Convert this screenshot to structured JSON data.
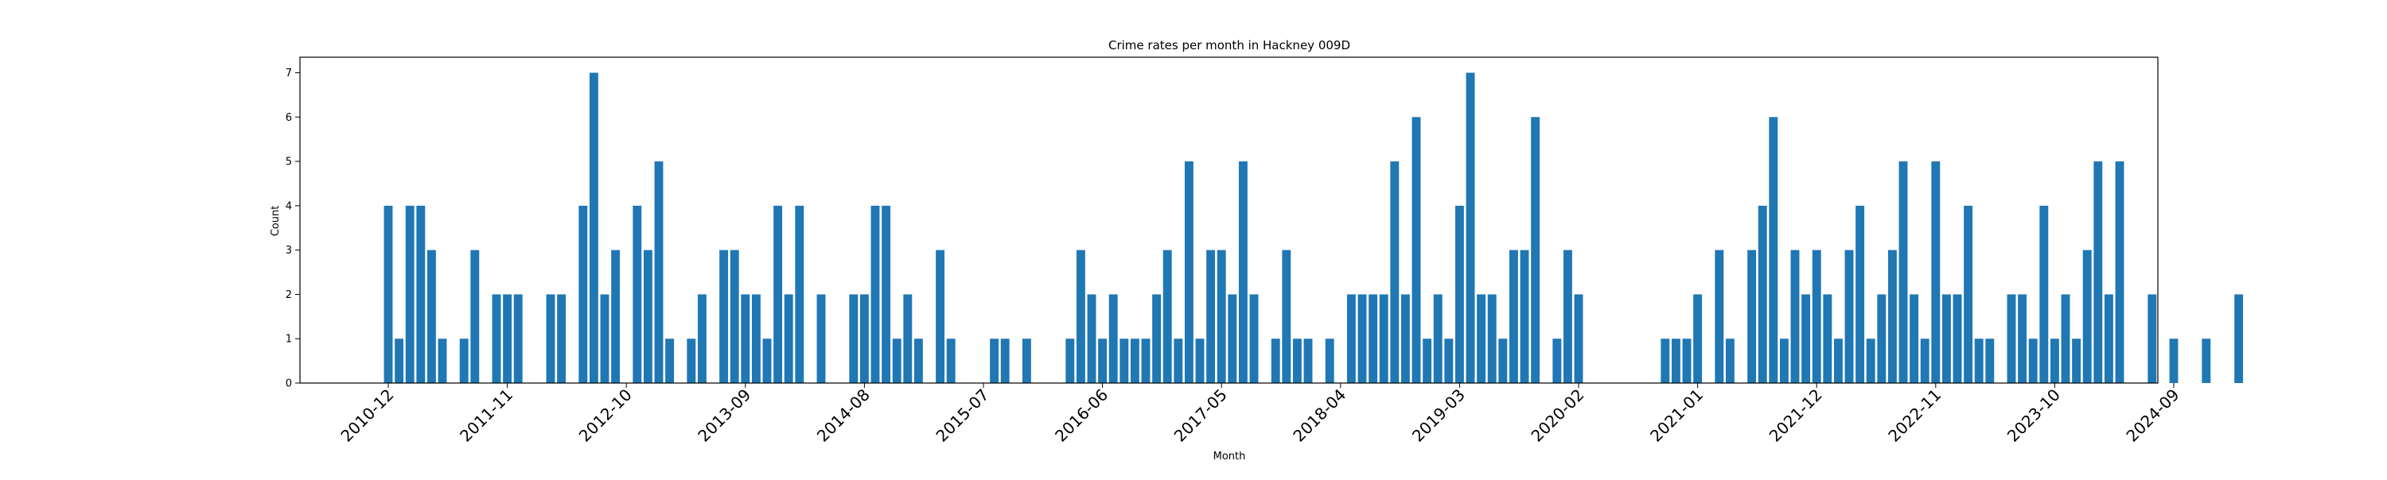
{
  "chart_data": {
    "type": "bar",
    "title": "Crime rates per month in Hackney 009D",
    "xlabel": "Month",
    "ylabel": "Count",
    "ylim": [
      0,
      7.35
    ],
    "yticks": [
      0,
      1,
      2,
      3,
      4,
      5,
      6,
      7
    ],
    "grid": false,
    "legend": "none",
    "bar_color": "#1f77b4",
    "start_month": "2010-12",
    "xticks": [
      "2010-12",
      "2011-11",
      "2012-10",
      "2013-09",
      "2014-08",
      "2015-07",
      "2016-06",
      "2017-05",
      "2018-04",
      "2019-03",
      "2020-02",
      "2021-01",
      "2021-12",
      "2022-11",
      "2023-10",
      "2024-09"
    ],
    "months": [
      "2010-12",
      "2011-01",
      "2011-02",
      "2011-03",
      "2011-04",
      "2011-05",
      "2011-06",
      "2011-07",
      "2011-08",
      "2011-09",
      "2011-10",
      "2011-11",
      "2011-12",
      "2012-01",
      "2012-02",
      "2012-03",
      "2012-04",
      "2012-05",
      "2012-06",
      "2012-07",
      "2012-08",
      "2012-09",
      "2012-10",
      "2012-11",
      "2012-12",
      "2013-01",
      "2013-02",
      "2013-03",
      "2013-04",
      "2013-05",
      "2013-06",
      "2013-07",
      "2013-08",
      "2013-09",
      "2013-10",
      "2013-11",
      "2013-12",
      "2014-01",
      "2014-02",
      "2014-03",
      "2014-04",
      "2014-05",
      "2014-06",
      "2014-07",
      "2014-08",
      "2014-09",
      "2014-10",
      "2014-11",
      "2014-12",
      "2015-01",
      "2015-02",
      "2015-03",
      "2015-04",
      "2015-05",
      "2015-06",
      "2015-07",
      "2015-08",
      "2015-09",
      "2015-10",
      "2015-11",
      "2015-12",
      "2016-01",
      "2016-02",
      "2016-03",
      "2016-04",
      "2016-05",
      "2016-06",
      "2016-07",
      "2016-08",
      "2016-09",
      "2016-10",
      "2016-11",
      "2016-12",
      "2017-01",
      "2017-02",
      "2017-03",
      "2017-04",
      "2017-05",
      "2017-06",
      "2017-07",
      "2017-08",
      "2017-09",
      "2017-10",
      "2017-11",
      "2017-12",
      "2018-01",
      "2018-02",
      "2018-03",
      "2018-04",
      "2018-05",
      "2018-06",
      "2018-07",
      "2018-08",
      "2018-09",
      "2018-10",
      "2018-11",
      "2018-12",
      "2019-01",
      "2019-02",
      "2019-03",
      "2019-04",
      "2019-05",
      "2019-06",
      "2019-07",
      "2019-08",
      "2019-09",
      "2019-10",
      "2019-11",
      "2019-12",
      "2020-01",
      "2020-02",
      "2020-03",
      "2020-04",
      "2020-05",
      "2020-06",
      "2020-07",
      "2020-08",
      "2020-09",
      "2020-10",
      "2020-11",
      "2020-12",
      "2021-01",
      "2021-02",
      "2021-03",
      "2021-04",
      "2021-05",
      "2021-06",
      "2021-07",
      "2021-08",
      "2021-09",
      "2021-10",
      "2021-11",
      "2021-12",
      "2022-01",
      "2022-02",
      "2022-03",
      "2022-04",
      "2022-05",
      "2022-06",
      "2022-07",
      "2022-08",
      "2022-09",
      "2022-10",
      "2022-11",
      "2022-12",
      "2023-01",
      "2023-02",
      "2023-03",
      "2023-04",
      "2023-05",
      "2023-06",
      "2023-07",
      "2023-08",
      "2023-09",
      "2023-10",
      "2023-11",
      "2023-12",
      "2024-01",
      "2024-02",
      "2024-03",
      "2024-04",
      "2024-05",
      "2024-06",
      "2024-07",
      "2024-08",
      "2024-09",
      "2024-10",
      "2024-11",
      "2024-12",
      "2025-01",
      "2025-02",
      "2025-03"
    ],
    "values": [
      4,
      1,
      4,
      4,
      3,
      1,
      0,
      1,
      3,
      0,
      2,
      2,
      2,
      0,
      0,
      2,
      2,
      0,
      4,
      7,
      2,
      3,
      0,
      4,
      3,
      5,
      1,
      0,
      1,
      2,
      0,
      3,
      3,
      2,
      2,
      1,
      4,
      2,
      4,
      0,
      2,
      0,
      0,
      2,
      2,
      4,
      4,
      1,
      2,
      1,
      0,
      3,
      1,
      0,
      0,
      0,
      1,
      1,
      0,
      1,
      0,
      0,
      0,
      1,
      3,
      2,
      1,
      2,
      1,
      1,
      1,
      2,
      3,
      1,
      5,
      1,
      3,
      3,
      2,
      5,
      2,
      0,
      1,
      3,
      1,
      1,
      0,
      1,
      0,
      2,
      2,
      2,
      2,
      5,
      2,
      6,
      1,
      2,
      1,
      4,
      7,
      2,
      2,
      1,
      3,
      3,
      6,
      0,
      1,
      3,
      2,
      0,
      0,
      0,
      0,
      0,
      0,
      0,
      1,
      1,
      1,
      2,
      0,
      3,
      1,
      0,
      3,
      4,
      6,
      1,
      3,
      2,
      3,
      2,
      1,
      3,
      4,
      1,
      2,
      3,
      5,
      2,
      1,
      5,
      2,
      2,
      4,
      1,
      1,
      0,
      2,
      2,
      1,
      4,
      1,
      2,
      1,
      3,
      5,
      2,
      5,
      0,
      0,
      2,
      0,
      1,
      0,
      0,
      1,
      0,
      0,
      2
    ]
  }
}
